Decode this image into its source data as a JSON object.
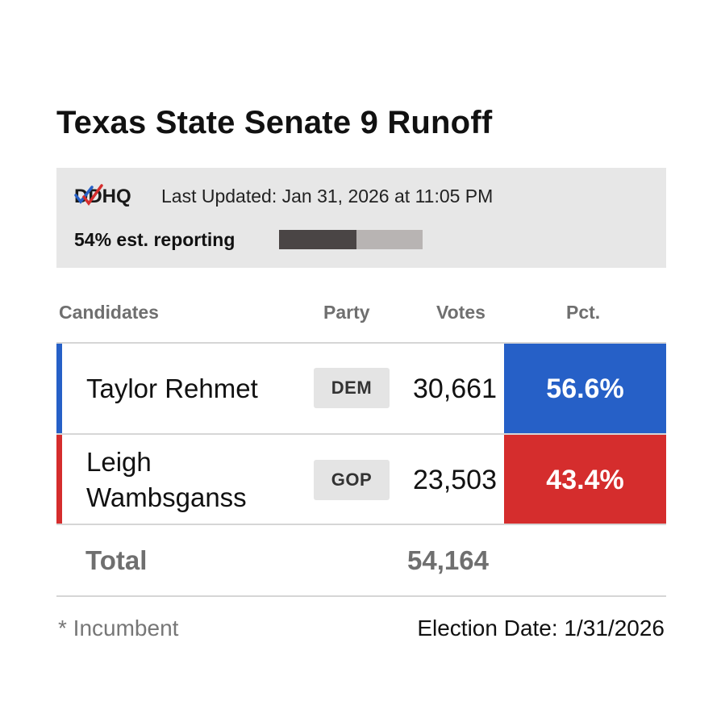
{
  "race": {
    "title": "Texas State Senate 9 Runoff"
  },
  "status": {
    "logo_text": "DDHQ",
    "last_updated": "Last Updated: Jan 31, 2026 at 11:05 PM",
    "reporting_label": "54% est. reporting",
    "reporting_fraction": 0.54
  },
  "table": {
    "headers": {
      "candidates": "Candidates",
      "party": "Party",
      "votes": "Votes",
      "pct": "Pct."
    },
    "rows": [
      {
        "name": "Taylor Rehmet",
        "party": "DEM",
        "votes": "30,661",
        "pct": "56.6%",
        "color": "#2660c7"
      },
      {
        "name": "Leigh Wambsganss",
        "party": "GOP",
        "votes": "23,503",
        "pct": "43.4%",
        "color": "#d52d2d"
      }
    ],
    "total_label": "Total",
    "total_votes": "54,164"
  },
  "footer": {
    "incumbent_note": "* Incumbent",
    "election_date": "Election Date: 1/31/2026"
  }
}
